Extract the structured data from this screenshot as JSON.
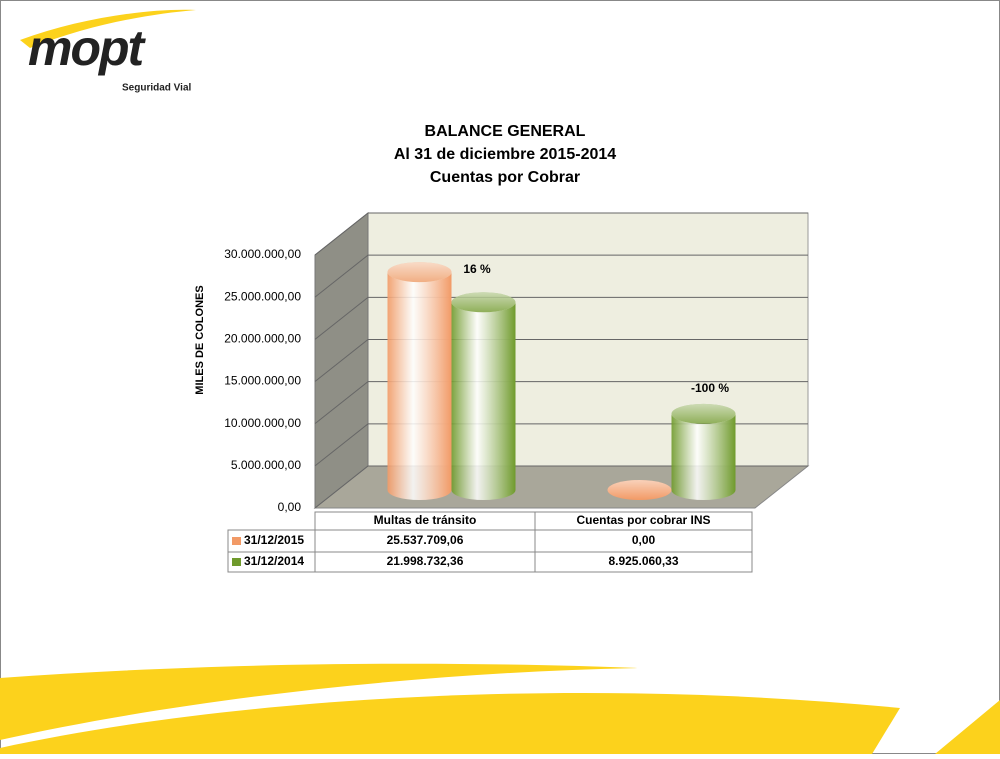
{
  "logo": {
    "brand": "mopt",
    "tagline": "Seguridad Vial"
  },
  "chart_data": {
    "type": "bar",
    "title_lines": [
      "BALANCE GENERAL",
      "Al 31 de diciembre 2015-2014",
      "Cuentas por Cobrar"
    ],
    "y_label": "MILES  DE  COLONES",
    "categories": [
      "Multas de tránsito",
      "Cuentas por cobrar INS"
    ],
    "series": [
      {
        "name": "31/12/2015",
        "color": "#f29a66",
        "values": [
          25537709.06,
          0
        ],
        "value_labels": [
          "25.537.709,06",
          "0,00"
        ]
      },
      {
        "name": "31/12/2014",
        "color": "#6f9a2c",
        "values": [
          21998732.36,
          8925060.33
        ],
        "value_labels": [
          "21.998.732,36",
          "8.925.060,33"
        ]
      }
    ],
    "annotations": [
      "16 %",
      "-100 %"
    ],
    "ylim": [
      0,
      30000000
    ],
    "yticks": [
      {
        "value": 0,
        "label": "0,00"
      },
      {
        "value": 5000000,
        "label": "5.000.000,00"
      },
      {
        "value": 10000000,
        "label": "10.000.000,00"
      },
      {
        "value": 15000000,
        "label": "15.000.000,00"
      },
      {
        "value": 20000000,
        "label": "20.000.000,00"
      },
      {
        "value": 25000000,
        "label": "25.000.000,00"
      },
      {
        "value": 30000000,
        "label": "30.000.000,00"
      }
    ],
    "grid": true
  }
}
